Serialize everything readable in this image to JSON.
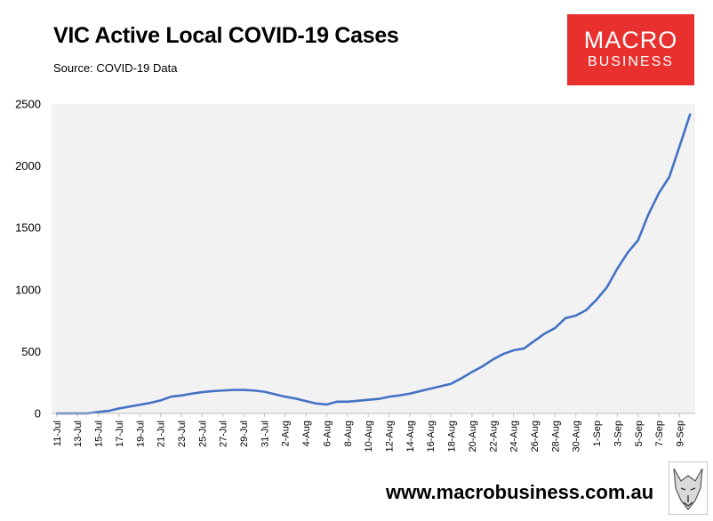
{
  "header": {
    "title": "VIC Active Local COVID-19 Cases",
    "source": "Source: COVID-19 Data"
  },
  "logo": {
    "line1": "MACRO",
    "line2": "BUSINESS"
  },
  "footer": {
    "url": "www.macrobusiness.com.au"
  },
  "colors": {
    "line": "#4472c4",
    "plot_bg": "#f2f2f2",
    "logo_bg": "#e8312f"
  },
  "chart_data": {
    "type": "line",
    "title": "VIC Active Local COVID-19 Cases",
    "xlabel": "",
    "ylabel": "",
    "ylim": [
      0,
      2500
    ],
    "yticks": [
      0,
      500,
      1000,
      1500,
      2000,
      2500
    ],
    "grid": false,
    "x": [
      "11-Jul",
      "12-Jul",
      "13-Jul",
      "14-Jul",
      "15-Jul",
      "16-Jul",
      "17-Jul",
      "18-Jul",
      "19-Jul",
      "20-Jul",
      "21-Jul",
      "22-Jul",
      "23-Jul",
      "24-Jul",
      "25-Jul",
      "26-Jul",
      "27-Jul",
      "28-Jul",
      "29-Jul",
      "30-Jul",
      "31-Jul",
      "1-Aug",
      "2-Aug",
      "3-Aug",
      "4-Aug",
      "5-Aug",
      "6-Aug",
      "7-Aug",
      "8-Aug",
      "9-Aug",
      "10-Aug",
      "11-Aug",
      "12-Aug",
      "13-Aug",
      "14-Aug",
      "15-Aug",
      "16-Aug",
      "17-Aug",
      "18-Aug",
      "19-Aug",
      "20-Aug",
      "21-Aug",
      "22-Aug",
      "23-Aug",
      "24-Aug",
      "25-Aug",
      "26-Aug",
      "27-Aug",
      "28-Aug",
      "29-Aug",
      "30-Aug",
      "31-Aug",
      "1-Sep",
      "2-Sep",
      "3-Sep",
      "4-Sep",
      "5-Sep",
      "6-Sep",
      "7-Sep",
      "8-Sep",
      "9-Sep",
      "10-Sep"
    ],
    "x_tick_labels": [
      "11-Jul",
      "13-Jul",
      "15-Jul",
      "17-Jul",
      "19-Jul",
      "21-Jul",
      "23-Jul",
      "25-Jul",
      "27-Jul",
      "29-Jul",
      "31-Jul",
      "2-Aug",
      "4-Aug",
      "6-Aug",
      "8-Aug",
      "10-Aug",
      "12-Aug",
      "14-Aug",
      "16-Aug",
      "18-Aug",
      "20-Aug",
      "22-Aug",
      "24-Aug",
      "26-Aug",
      "28-Aug",
      "30-Aug",
      "1-Sep",
      "3-Sep",
      "5-Sep",
      "7-Sep",
      "9-Sep"
    ],
    "series": [
      {
        "name": "",
        "values": [
          0,
          0,
          0,
          0,
          12,
          20,
          40,
          55,
          70,
          85,
          105,
          135,
          145,
          160,
          172,
          180,
          185,
          190,
          190,
          185,
          175,
          155,
          135,
          120,
          100,
          80,
          72,
          95,
          95,
          102,
          110,
          117,
          135,
          145,
          160,
          180,
          200,
          220,
          240,
          285,
          335,
          380,
          435,
          480,
          510,
          525,
          585,
          645,
          690,
          770,
          790,
          835,
          920,
          1020,
          1170,
          1300,
          1400,
          1610,
          1780,
          1910,
          2160,
          2415
        ]
      }
    ]
  }
}
